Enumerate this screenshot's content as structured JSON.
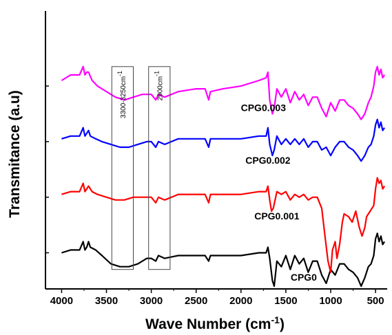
{
  "chart_data": {
    "type": "line",
    "title": "",
    "xlabel": "Wave Number (cm",
    "xlabel_sup": "-1",
    "xlabel_close": ")",
    "ylabel": "Transmitance (a.u)",
    "x_reversed": true,
    "xlim": [
      4180,
      370
    ],
    "ylim": [
      0,
      1
    ],
    "x_ticks": [
      4000,
      3500,
      3000,
      2500,
      2000,
      1500,
      1000,
      500
    ],
    "x_tick_labels": [
      "4000",
      "3500",
      "3000",
      "2500",
      "2000",
      "1500",
      "1000",
      "500"
    ],
    "y_ticks": [
      0.13,
      0.33,
      0.53,
      0.73
    ],
    "grid": false,
    "legend": "labels placed next to each spectrum",
    "series": [
      {
        "name": "CPG0",
        "color": "#000000",
        "label_at": [
          1300,
          0.03
        ],
        "points": [
          [
            4000,
            0.13
          ],
          [
            3900,
            0.14
          ],
          [
            3800,
            0.14
          ],
          [
            3760,
            0.17
          ],
          [
            3740,
            0.14
          ],
          [
            3720,
            0.15
          ],
          [
            3700,
            0.17
          ],
          [
            3680,
            0.15
          ],
          [
            3620,
            0.14
          ],
          [
            3550,
            0.12
          ],
          [
            3450,
            0.09
          ],
          [
            3350,
            0.08
          ],
          [
            3250,
            0.08
          ],
          [
            3150,
            0.09
          ],
          [
            3050,
            0.11
          ],
          [
            3000,
            0.11
          ],
          [
            2950,
            0.1
          ],
          [
            2920,
            0.12
          ],
          [
            2850,
            0.11
          ],
          [
            2700,
            0.12
          ],
          [
            2500,
            0.12
          ],
          [
            2400,
            0.12
          ],
          [
            2360,
            0.1
          ],
          [
            2340,
            0.12
          ],
          [
            2200,
            0.12
          ],
          [
            2000,
            0.12
          ],
          [
            1800,
            0.13
          ],
          [
            1720,
            0.13
          ],
          [
            1700,
            0.15
          ],
          [
            1680,
            0.11
          ],
          [
            1650,
            0.03
          ],
          [
            1630,
            0.01
          ],
          [
            1600,
            0.1
          ],
          [
            1550,
            0.08
          ],
          [
            1500,
            0.12
          ],
          [
            1450,
            0.07
          ],
          [
            1400,
            0.12
          ],
          [
            1350,
            0.09
          ],
          [
            1300,
            0.11
          ],
          [
            1250,
            0.06
          ],
          [
            1200,
            0.1
          ],
          [
            1150,
            0.1
          ],
          [
            1100,
            0.05
          ],
          [
            1050,
            0.02
          ],
          [
            1000,
            0.07
          ],
          [
            950,
            0.05
          ],
          [
            900,
            0.09
          ],
          [
            850,
            0.09
          ],
          [
            800,
            0.07
          ],
          [
            750,
            0.06
          ],
          [
            700,
            0.04
          ],
          [
            660,
            0.01
          ],
          [
            620,
            0.04
          ],
          [
            580,
            0.08
          ],
          [
            550,
            0.09
          ],
          [
            520,
            0.12
          ],
          [
            500,
            0.18
          ],
          [
            480,
            0.2
          ],
          [
            460,
            0.17
          ],
          [
            440,
            0.19
          ],
          [
            420,
            0.16
          ],
          [
            400,
            0.17
          ]
        ]
      },
      {
        "name": "CPG0.001",
        "color": "#ff0000",
        "label_at": [
          1600,
          0.25
        ],
        "points": [
          [
            4000,
            0.34
          ],
          [
            3900,
            0.35
          ],
          [
            3800,
            0.35
          ],
          [
            3760,
            0.38
          ],
          [
            3740,
            0.35
          ],
          [
            3720,
            0.36
          ],
          [
            3700,
            0.37
          ],
          [
            3660,
            0.35
          ],
          [
            3600,
            0.34
          ],
          [
            3500,
            0.33
          ],
          [
            3400,
            0.32
          ],
          [
            3300,
            0.32
          ],
          [
            3200,
            0.33
          ],
          [
            3100,
            0.33
          ],
          [
            3000,
            0.33
          ],
          [
            2950,
            0.31
          ],
          [
            2920,
            0.33
          ],
          [
            2850,
            0.32
          ],
          [
            2700,
            0.34
          ],
          [
            2500,
            0.34
          ],
          [
            2400,
            0.34
          ],
          [
            2360,
            0.31
          ],
          [
            2340,
            0.34
          ],
          [
            2200,
            0.34
          ],
          [
            2000,
            0.34
          ],
          [
            1800,
            0.35
          ],
          [
            1720,
            0.35
          ],
          [
            1700,
            0.37
          ],
          [
            1680,
            0.32
          ],
          [
            1660,
            0.28
          ],
          [
            1640,
            0.29
          ],
          [
            1600,
            0.35
          ],
          [
            1550,
            0.34
          ],
          [
            1500,
            0.35
          ],
          [
            1450,
            0.32
          ],
          [
            1400,
            0.34
          ],
          [
            1350,
            0.33
          ],
          [
            1300,
            0.34
          ],
          [
            1250,
            0.32
          ],
          [
            1200,
            0.33
          ],
          [
            1150,
            0.33
          ],
          [
            1100,
            0.29
          ],
          [
            1060,
            0.18
          ],
          [
            1030,
            0.1
          ],
          [
            1000,
            0.06
          ],
          [
            980,
            0.14
          ],
          [
            950,
            0.17
          ],
          [
            930,
            0.11
          ],
          [
            900,
            0.16
          ],
          [
            870,
            0.24
          ],
          [
            850,
            0.27
          ],
          [
            800,
            0.26
          ],
          [
            760,
            0.24
          ],
          [
            720,
            0.28
          ],
          [
            680,
            0.22
          ],
          [
            650,
            0.19
          ],
          [
            620,
            0.22
          ],
          [
            600,
            0.26
          ],
          [
            560,
            0.28
          ],
          [
            520,
            0.3
          ],
          [
            500,
            0.36
          ],
          [
            480,
            0.4
          ],
          [
            460,
            0.38
          ],
          [
            440,
            0.39
          ],
          [
            420,
            0.36
          ],
          [
            400,
            0.37
          ]
        ]
      },
      {
        "name": "CPG0.002",
        "color": "#0000ff",
        "label_at": [
          1700,
          0.45
        ],
        "points": [
          [
            4000,
            0.54
          ],
          [
            3900,
            0.55
          ],
          [
            3800,
            0.55
          ],
          [
            3760,
            0.58
          ],
          [
            3740,
            0.55
          ],
          [
            3720,
            0.56
          ],
          [
            3700,
            0.57
          ],
          [
            3680,
            0.55
          ],
          [
            3620,
            0.54
          ],
          [
            3550,
            0.53
          ],
          [
            3450,
            0.52
          ],
          [
            3350,
            0.51
          ],
          [
            3250,
            0.51
          ],
          [
            3150,
            0.52
          ],
          [
            3050,
            0.53
          ],
          [
            3000,
            0.53
          ],
          [
            2950,
            0.51
          ],
          [
            2920,
            0.53
          ],
          [
            2850,
            0.52
          ],
          [
            2700,
            0.54
          ],
          [
            2500,
            0.54
          ],
          [
            2400,
            0.54
          ],
          [
            2360,
            0.51
          ],
          [
            2340,
            0.54
          ],
          [
            2200,
            0.54
          ],
          [
            2000,
            0.54
          ],
          [
            1800,
            0.55
          ],
          [
            1720,
            0.55
          ],
          [
            1700,
            0.58
          ],
          [
            1680,
            0.52
          ],
          [
            1650,
            0.48
          ],
          [
            1630,
            0.5
          ],
          [
            1600,
            0.55
          ],
          [
            1550,
            0.52
          ],
          [
            1500,
            0.54
          ],
          [
            1450,
            0.52
          ],
          [
            1400,
            0.54
          ],
          [
            1350,
            0.52
          ],
          [
            1300,
            0.54
          ],
          [
            1250,
            0.51
          ],
          [
            1200,
            0.53
          ],
          [
            1150,
            0.53
          ],
          [
            1100,
            0.5
          ],
          [
            1050,
            0.51
          ],
          [
            1000,
            0.48
          ],
          [
            950,
            0.51
          ],
          [
            900,
            0.53
          ],
          [
            850,
            0.53
          ],
          [
            800,
            0.51
          ],
          [
            750,
            0.5
          ],
          [
            700,
            0.48
          ],
          [
            660,
            0.46
          ],
          [
            620,
            0.48
          ],
          [
            580,
            0.51
          ],
          [
            550,
            0.52
          ],
          [
            520,
            0.55
          ],
          [
            500,
            0.59
          ],
          [
            480,
            0.61
          ],
          [
            460,
            0.58
          ],
          [
            440,
            0.6
          ],
          [
            420,
            0.57
          ],
          [
            400,
            0.58
          ]
        ]
      },
      {
        "name": "CPG0.003",
        "color": "#ff00ff",
        "label_at": [
          1750,
          0.64
        ],
        "points": [
          [
            4000,
            0.75
          ],
          [
            3900,
            0.77
          ],
          [
            3800,
            0.77
          ],
          [
            3760,
            0.8
          ],
          [
            3740,
            0.77
          ],
          [
            3720,
            0.78
          ],
          [
            3700,
            0.78
          ],
          [
            3660,
            0.75
          ],
          [
            3600,
            0.73
          ],
          [
            3500,
            0.71
          ],
          [
            3400,
            0.69
          ],
          [
            3300,
            0.68
          ],
          [
            3200,
            0.69
          ],
          [
            3100,
            0.7
          ],
          [
            3000,
            0.7
          ],
          [
            2950,
            0.68
          ],
          [
            2920,
            0.7
          ],
          [
            2850,
            0.69
          ],
          [
            2700,
            0.71
          ],
          [
            2500,
            0.72
          ],
          [
            2400,
            0.72
          ],
          [
            2360,
            0.68
          ],
          [
            2340,
            0.71
          ],
          [
            2200,
            0.72
          ],
          [
            2000,
            0.73
          ],
          [
            1800,
            0.75
          ],
          [
            1720,
            0.76
          ],
          [
            1700,
            0.78
          ],
          [
            1680,
            0.68
          ],
          [
            1650,
            0.63
          ],
          [
            1630,
            0.65
          ],
          [
            1600,
            0.72
          ],
          [
            1550,
            0.69
          ],
          [
            1500,
            0.72
          ],
          [
            1450,
            0.67
          ],
          [
            1400,
            0.71
          ],
          [
            1350,
            0.68
          ],
          [
            1300,
            0.7
          ],
          [
            1250,
            0.66
          ],
          [
            1200,
            0.69
          ],
          [
            1150,
            0.69
          ],
          [
            1100,
            0.65
          ],
          [
            1050,
            0.62
          ],
          [
            1000,
            0.67
          ],
          [
            950,
            0.64
          ],
          [
            900,
            0.68
          ],
          [
            850,
            0.68
          ],
          [
            800,
            0.66
          ],
          [
            750,
            0.65
          ],
          [
            700,
            0.63
          ],
          [
            660,
            0.61
          ],
          [
            620,
            0.63
          ],
          [
            580,
            0.67
          ],
          [
            550,
            0.69
          ],
          [
            520,
            0.73
          ],
          [
            500,
            0.78
          ],
          [
            480,
            0.8
          ],
          [
            460,
            0.77
          ],
          [
            440,
            0.79
          ],
          [
            420,
            0.76
          ],
          [
            400,
            0.77
          ]
        ]
      }
    ],
    "annotations": [
      {
        "label": "3300-3250cm",
        "sup": "-1",
        "x_range": [
          3440,
          3200
        ],
        "y_range": [
          0.07,
          0.8
        ]
      },
      {
        "label": "2900cm",
        "sup": "-1",
        "x_range": [
          3030,
          2790
        ],
        "y_range": [
          0.07,
          0.8
        ]
      }
    ]
  }
}
